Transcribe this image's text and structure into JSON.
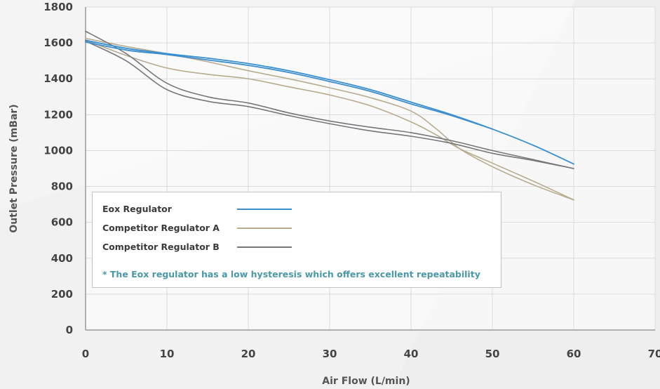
{
  "chart_data": {
    "type": "line",
    "xlabel": "Air Flow (L/min)",
    "ylabel": "Outlet Pressure (mBar)",
    "xlim": [
      0,
      70
    ],
    "ylim": [
      0,
      1800
    ],
    "xticks": [
      0,
      10,
      20,
      30,
      40,
      50,
      60,
      70
    ],
    "yticks": [
      0,
      200,
      400,
      600,
      800,
      1000,
      1200,
      1400,
      1600,
      1800
    ],
    "grid": true,
    "legend_position": "bottom-left",
    "series": [
      {
        "name": "Eox Regulator",
        "color": "#3b8fcf",
        "curves": [
          [
            [
              0,
              1615
            ],
            [
              5,
              1570
            ],
            [
              10,
              1540
            ],
            [
              15,
              1515
            ],
            [
              20,
              1485
            ],
            [
              25,
              1445
            ],
            [
              30,
              1395
            ],
            [
              35,
              1340
            ],
            [
              40,
              1270
            ],
            [
              45,
              1200
            ],
            [
              50,
              1120
            ],
            [
              55,
              1030
            ],
            [
              60,
              925
            ]
          ],
          [
            [
              0,
              1605
            ],
            [
              5,
              1560
            ],
            [
              10,
              1535
            ],
            [
              15,
              1505
            ],
            [
              20,
              1475
            ],
            [
              25,
              1435
            ],
            [
              30,
              1385
            ],
            [
              35,
              1330
            ],
            [
              40,
              1260
            ],
            [
              45,
              1195
            ],
            [
              50,
              1120
            ]
          ]
        ]
      },
      {
        "name": "Competitor Regulator A",
        "color": "#b9ab8e",
        "curves": [
          [
            [
              0,
              1625
            ],
            [
              5,
              1580
            ],
            [
              10,
              1540
            ],
            [
              15,
              1495
            ],
            [
              20,
              1445
            ],
            [
              25,
              1400
            ],
            [
              30,
              1350
            ],
            [
              35,
              1295
            ],
            [
              40,
              1220
            ],
            [
              43,
              1125
            ],
            [
              46,
              1010
            ],
            [
              50,
              910
            ],
            [
              55,
              810
            ],
            [
              60,
              725
            ]
          ],
          [
            [
              0,
              1615
            ],
            [
              5,
              1530
            ],
            [
              10,
              1460
            ],
            [
              15,
              1425
            ],
            [
              20,
              1400
            ],
            [
              25,
              1355
            ],
            [
              30,
              1310
            ],
            [
              35,
              1250
            ],
            [
              40,
              1160
            ],
            [
              43,
              1090
            ],
            [
              46,
              1010
            ],
            [
              50,
              930
            ],
            [
              55,
              830
            ],
            [
              60,
              725
            ]
          ]
        ]
      },
      {
        "name": "Competitor Regulator B",
        "color": "#77777b",
        "curves": [
          [
            [
              0,
              1665
            ],
            [
              5,
              1540
            ],
            [
              10,
              1375
            ],
            [
              15,
              1300
            ],
            [
              20,
              1265
            ],
            [
              25,
              1210
            ],
            [
              30,
              1165
            ],
            [
              35,
              1130
            ],
            [
              40,
              1100
            ],
            [
              45,
              1055
            ],
            [
              50,
              1000
            ],
            [
              55,
              950
            ],
            [
              60,
              900
            ]
          ],
          [
            [
              0,
              1610
            ],
            [
              5,
              1500
            ],
            [
              10,
              1340
            ],
            [
              15,
              1275
            ],
            [
              20,
              1245
            ],
            [
              25,
              1195
            ],
            [
              30,
              1150
            ],
            [
              35,
              1110
            ],
            [
              40,
              1080
            ],
            [
              45,
              1040
            ],
            [
              50,
              985
            ],
            [
              55,
              945
            ],
            [
              60,
              900
            ]
          ]
        ]
      }
    ],
    "annotation": "* The Eox regulator has a low hysteresis which offers excellent repeatability",
    "annotation_color": "#4a98a8"
  }
}
